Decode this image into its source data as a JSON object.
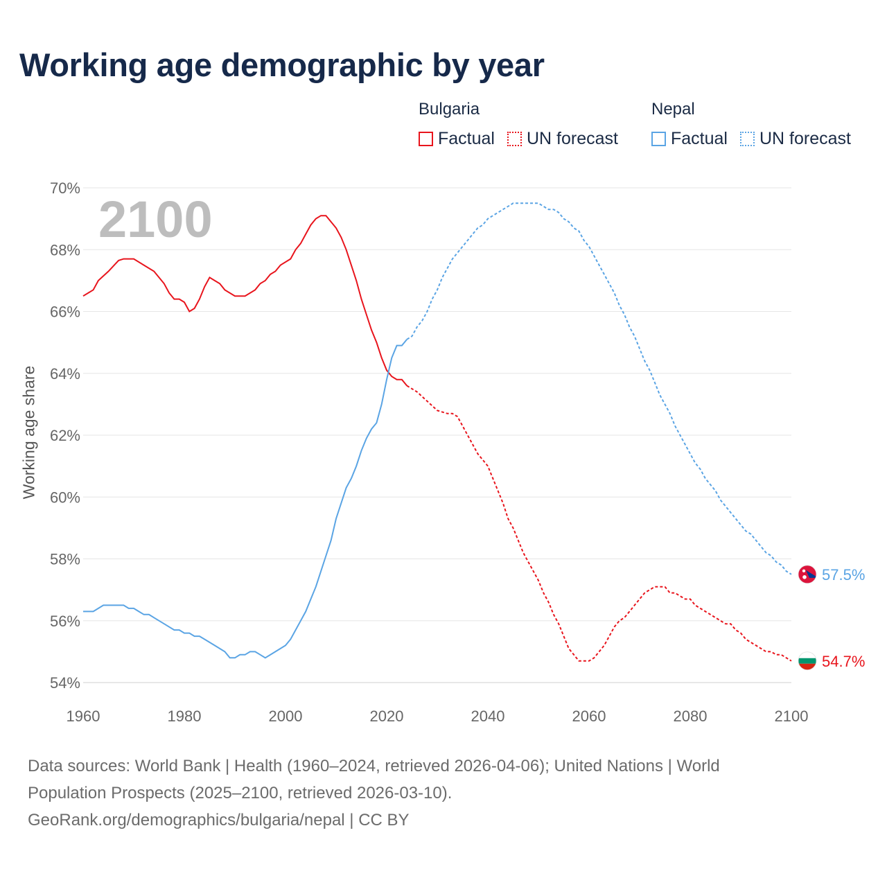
{
  "title": "Working age demographic by year",
  "legend": {
    "groups": [
      {
        "country": "Bulgaria",
        "factual": "Factual",
        "forecast": "UN forecast",
        "color": "#e8141c"
      },
      {
        "country": "Nepal",
        "factual": "Factual",
        "forecast": "UN forecast",
        "color": "#5aa4e4"
      }
    ]
  },
  "year_watermark": "2100",
  "footer": {
    "line1": "Data sources: World Bank | Health (1960–2024, retrieved 2026-04-06); United Nations | World",
    "line2": "Population Prospects (2025–2100, retrieved 2026-03-10).",
    "line3": "GeoRank.org/demographics/bulgaria/nepal | CC BY"
  },
  "chart_data": {
    "type": "line",
    "title": "Working age demographic by year",
    "xlabel": "",
    "ylabel": "Working age share",
    "xlim": [
      1960,
      2100
    ],
    "ylim": [
      54,
      70
    ],
    "x_ticks": [
      "1960",
      "1980",
      "2000",
      "2020",
      "2040",
      "2060",
      "2080",
      "2100"
    ],
    "y_ticks": [
      "70%",
      "68%",
      "66%",
      "64%",
      "62%",
      "60%",
      "58%",
      "56%",
      "54%"
    ],
    "grid": true,
    "factual_end_year": 2024,
    "series": [
      {
        "name": "Bulgaria",
        "color": "#e8141c",
        "flag_colors": [
          "#ffffff",
          "#00966e",
          "#d62612"
        ],
        "end_label": "54.7%",
        "points": [
          [
            1960,
            66.5
          ],
          [
            1962,
            66.7
          ],
          [
            1963,
            67.0
          ],
          [
            1965,
            67.3
          ],
          [
            1967,
            67.65
          ],
          [
            1968,
            67.7
          ],
          [
            1970,
            67.7
          ],
          [
            1972,
            67.5
          ],
          [
            1974,
            67.3
          ],
          [
            1976,
            66.9
          ],
          [
            1977,
            66.6
          ],
          [
            1978,
            66.4
          ],
          [
            1979,
            66.4
          ],
          [
            1980,
            66.3
          ],
          [
            1981,
            66.0
          ],
          [
            1982,
            66.1
          ],
          [
            1983,
            66.4
          ],
          [
            1984,
            66.8
          ],
          [
            1985,
            67.1
          ],
          [
            1986,
            67.0
          ],
          [
            1987,
            66.9
          ],
          [
            1988,
            66.7
          ],
          [
            1990,
            66.5
          ],
          [
            1992,
            66.5
          ],
          [
            1994,
            66.7
          ],
          [
            1995,
            66.9
          ],
          [
            1996,
            67.0
          ],
          [
            1997,
            67.2
          ],
          [
            1998,
            67.3
          ],
          [
            1999,
            67.5
          ],
          [
            2001,
            67.7
          ],
          [
            2002,
            68.0
          ],
          [
            2003,
            68.2
          ],
          [
            2004,
            68.5
          ],
          [
            2005,
            68.8
          ],
          [
            2006,
            69.0
          ],
          [
            2007,
            69.1
          ],
          [
            2008,
            69.1
          ],
          [
            2009,
            68.9
          ],
          [
            2010,
            68.7
          ],
          [
            2011,
            68.4
          ],
          [
            2012,
            68.0
          ],
          [
            2013,
            67.5
          ],
          [
            2014,
            67.0
          ],
          [
            2015,
            66.4
          ],
          [
            2016,
            65.9
          ],
          [
            2017,
            65.4
          ],
          [
            2018,
            65.0
          ],
          [
            2019,
            64.5
          ],
          [
            2020,
            64.1
          ],
          [
            2021,
            63.9
          ],
          [
            2022,
            63.8
          ],
          [
            2023,
            63.8
          ],
          [
            2024,
            63.6
          ],
          [
            2026,
            63.4
          ],
          [
            2028,
            63.1
          ],
          [
            2030,
            62.8
          ],
          [
            2032,
            62.7
          ],
          [
            2033,
            62.7
          ],
          [
            2034,
            62.6
          ],
          [
            2035,
            62.3
          ],
          [
            2036,
            62.0
          ],
          [
            2037,
            61.7
          ],
          [
            2038,
            61.4
          ],
          [
            2040,
            61.0
          ],
          [
            2041,
            60.6
          ],
          [
            2042,
            60.2
          ],
          [
            2043,
            59.8
          ],
          [
            2044,
            59.3
          ],
          [
            2045,
            59.0
          ],
          [
            2046,
            58.6
          ],
          [
            2047,
            58.2
          ],
          [
            2048,
            57.9
          ],
          [
            2049,
            57.6
          ],
          [
            2050,
            57.3
          ],
          [
            2051,
            56.9
          ],
          [
            2052,
            56.6
          ],
          [
            2053,
            56.2
          ],
          [
            2054,
            55.9
          ],
          [
            2055,
            55.5
          ],
          [
            2056,
            55.1
          ],
          [
            2057,
            54.9
          ],
          [
            2058,
            54.7
          ],
          [
            2059,
            54.7
          ],
          [
            2060,
            54.7
          ],
          [
            2061,
            54.8
          ],
          [
            2062,
            55.0
          ],
          [
            2063,
            55.2
          ],
          [
            2064,
            55.5
          ],
          [
            2065,
            55.8
          ],
          [
            2066,
            56.0
          ],
          [
            2067,
            56.1
          ],
          [
            2068,
            56.3
          ],
          [
            2069,
            56.5
          ],
          [
            2070,
            56.7
          ],
          [
            2071,
            56.9
          ],
          [
            2072,
            57.0
          ],
          [
            2073,
            57.1
          ],
          [
            2074,
            57.1
          ],
          [
            2075,
            57.1
          ],
          [
            2076,
            56.9
          ],
          [
            2077,
            56.9
          ],
          [
            2078,
            56.8
          ],
          [
            2079,
            56.7
          ],
          [
            2080,
            56.7
          ],
          [
            2081,
            56.5
          ],
          [
            2082,
            56.4
          ],
          [
            2083,
            56.3
          ],
          [
            2084,
            56.2
          ],
          [
            2085,
            56.1
          ],
          [
            2086,
            56.0
          ],
          [
            2087,
            55.9
          ],
          [
            2088,
            55.9
          ],
          [
            2089,
            55.7
          ],
          [
            2090,
            55.6
          ],
          [
            2091,
            55.4
          ],
          [
            2092,
            55.3
          ],
          [
            2093,
            55.2
          ],
          [
            2094,
            55.1
          ],
          [
            2095,
            55.0
          ],
          [
            2096,
            55.0
          ],
          [
            2097,
            54.9
          ],
          [
            2098,
            54.9
          ],
          [
            2099,
            54.8
          ],
          [
            2100,
            54.7
          ]
        ]
      },
      {
        "name": "Nepal",
        "color": "#5aa4e4",
        "flag_colors": [
          "#dc143c",
          "#003893",
          "#ffffff"
        ],
        "end_label": "57.5%",
        "points": [
          [
            1960,
            56.3
          ],
          [
            1962,
            56.3
          ],
          [
            1963,
            56.4
          ],
          [
            1964,
            56.5
          ],
          [
            1966,
            56.5
          ],
          [
            1968,
            56.5
          ],
          [
            1969,
            56.4
          ],
          [
            1970,
            56.4
          ],
          [
            1971,
            56.3
          ],
          [
            1972,
            56.2
          ],
          [
            1973,
            56.2
          ],
          [
            1974,
            56.1
          ],
          [
            1976,
            55.9
          ],
          [
            1978,
            55.7
          ],
          [
            1979,
            55.7
          ],
          [
            1980,
            55.6
          ],
          [
            1981,
            55.6
          ],
          [
            1982,
            55.5
          ],
          [
            1983,
            55.5
          ],
          [
            1984,
            55.4
          ],
          [
            1986,
            55.2
          ],
          [
            1988,
            55.0
          ],
          [
            1989,
            54.8
          ],
          [
            1990,
            54.8
          ],
          [
            1991,
            54.9
          ],
          [
            1992,
            54.9
          ],
          [
            1993,
            55.0
          ],
          [
            1994,
            55.0
          ],
          [
            1995,
            54.9
          ],
          [
            1996,
            54.8
          ],
          [
            1998,
            55.0
          ],
          [
            2000,
            55.2
          ],
          [
            2001,
            55.4
          ],
          [
            2002,
            55.7
          ],
          [
            2003,
            56.0
          ],
          [
            2004,
            56.3
          ],
          [
            2005,
            56.7
          ],
          [
            2006,
            57.1
          ],
          [
            2007,
            57.6
          ],
          [
            2008,
            58.1
          ],
          [
            2009,
            58.6
          ],
          [
            2010,
            59.3
          ],
          [
            2011,
            59.8
          ],
          [
            2012,
            60.3
          ],
          [
            2013,
            60.6
          ],
          [
            2014,
            61.0
          ],
          [
            2015,
            61.5
          ],
          [
            2016,
            61.9
          ],
          [
            2017,
            62.2
          ],
          [
            2018,
            62.4
          ],
          [
            2019,
            63.0
          ],
          [
            2020,
            63.8
          ],
          [
            2021,
            64.5
          ],
          [
            2022,
            64.9
          ],
          [
            2023,
            64.9
          ],
          [
            2024,
            65.1
          ],
          [
            2025,
            65.2
          ],
          [
            2026,
            65.5
          ],
          [
            2027,
            65.7
          ],
          [
            2028,
            66.0
          ],
          [
            2029,
            66.4
          ],
          [
            2030,
            66.7
          ],
          [
            2031,
            67.1
          ],
          [
            2032,
            67.4
          ],
          [
            2033,
            67.7
          ],
          [
            2034,
            67.9
          ],
          [
            2035,
            68.1
          ],
          [
            2036,
            68.3
          ],
          [
            2037,
            68.5
          ],
          [
            2038,
            68.7
          ],
          [
            2039,
            68.8
          ],
          [
            2040,
            69.0
          ],
          [
            2041,
            69.1
          ],
          [
            2042,
            69.2
          ],
          [
            2043,
            69.3
          ],
          [
            2044,
            69.4
          ],
          [
            2045,
            69.5
          ],
          [
            2046,
            69.5
          ],
          [
            2048,
            69.5
          ],
          [
            2050,
            69.5
          ],
          [
            2051,
            69.4
          ],
          [
            2052,
            69.3
          ],
          [
            2053,
            69.3
          ],
          [
            2054,
            69.2
          ],
          [
            2055,
            69.0
          ],
          [
            2056,
            68.9
          ],
          [
            2057,
            68.7
          ],
          [
            2058,
            68.6
          ],
          [
            2059,
            68.3
          ],
          [
            2060,
            68.1
          ],
          [
            2061,
            67.8
          ],
          [
            2062,
            67.5
          ],
          [
            2063,
            67.2
          ],
          [
            2064,
            66.9
          ],
          [
            2065,
            66.6
          ],
          [
            2066,
            66.2
          ],
          [
            2067,
            65.9
          ],
          [
            2068,
            65.5
          ],
          [
            2069,
            65.2
          ],
          [
            2070,
            64.8
          ],
          [
            2071,
            64.4
          ],
          [
            2072,
            64.1
          ],
          [
            2073,
            63.7
          ],
          [
            2074,
            63.3
          ],
          [
            2075,
            63.0
          ],
          [
            2076,
            62.7
          ],
          [
            2077,
            62.3
          ],
          [
            2078,
            62.0
          ],
          [
            2079,
            61.7
          ],
          [
            2080,
            61.4
          ],
          [
            2081,
            61.1
          ],
          [
            2082,
            60.9
          ],
          [
            2083,
            60.6
          ],
          [
            2084,
            60.4
          ],
          [
            2085,
            60.2
          ],
          [
            2086,
            59.9
          ],
          [
            2087,
            59.7
          ],
          [
            2088,
            59.5
          ],
          [
            2089,
            59.3
          ],
          [
            2090,
            59.1
          ],
          [
            2091,
            58.9
          ],
          [
            2092,
            58.8
          ],
          [
            2093,
            58.6
          ],
          [
            2094,
            58.4
          ],
          [
            2095,
            58.2
          ],
          [
            2096,
            58.1
          ],
          [
            2097,
            57.9
          ],
          [
            2098,
            57.8
          ],
          [
            2099,
            57.6
          ],
          [
            2100,
            57.5
          ]
        ]
      }
    ]
  }
}
